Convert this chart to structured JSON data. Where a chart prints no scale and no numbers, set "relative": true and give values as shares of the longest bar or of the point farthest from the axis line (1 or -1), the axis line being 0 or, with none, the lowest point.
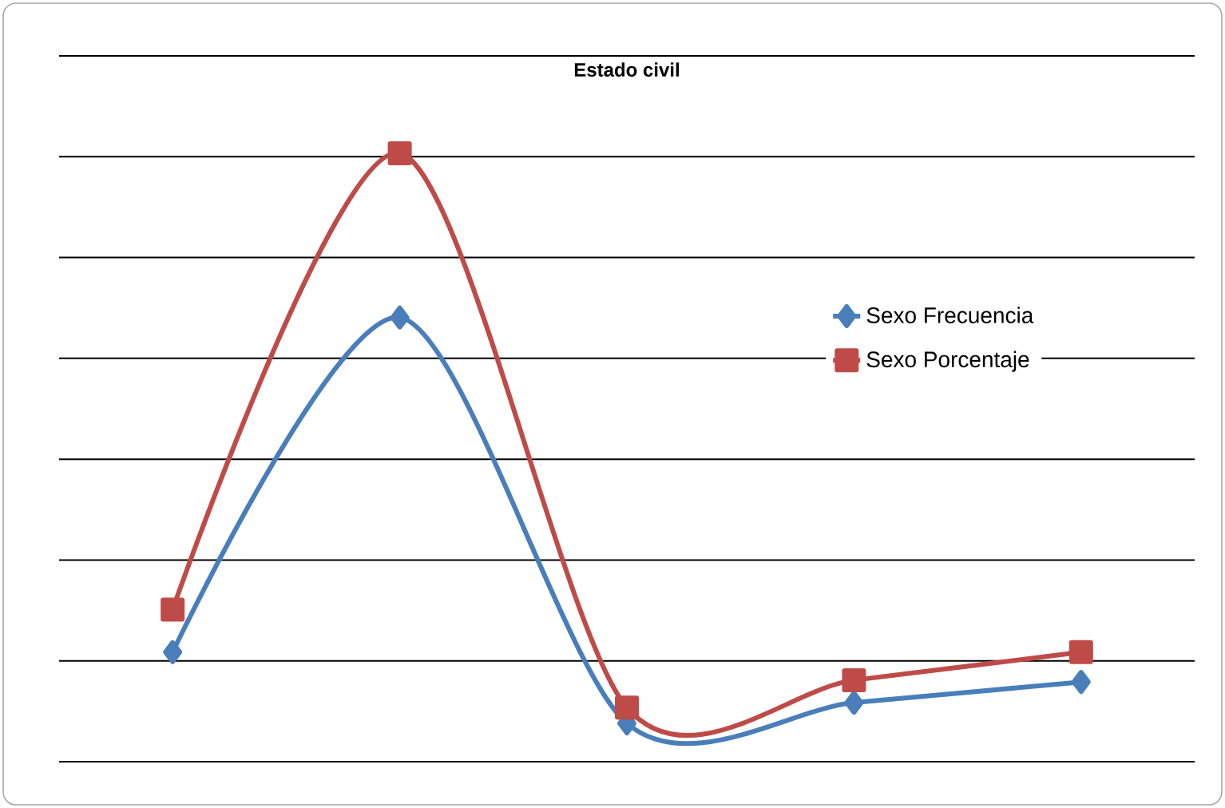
{
  "chart_data": {
    "type": "line",
    "title": "Estado civil",
    "relative": true,
    "categories": [
      null,
      null,
      null,
      null,
      null
    ],
    "series": [
      {
        "name": "Sexo Frecuencia",
        "color": "#4a7ebb",
        "marker": "diamond",
        "values": [
          0.18,
          0.73,
          0.063,
          0.097,
          0.131
        ]
      },
      {
        "name": "Sexo Porcentaje",
        "color": "#be4b48",
        "marker": "square",
        "values": [
          0.25,
          1,
          0.089,
          0.134,
          0.18
        ]
      }
    ],
    "grid": "y",
    "legend": "right",
    "line_style": "solid"
  }
}
